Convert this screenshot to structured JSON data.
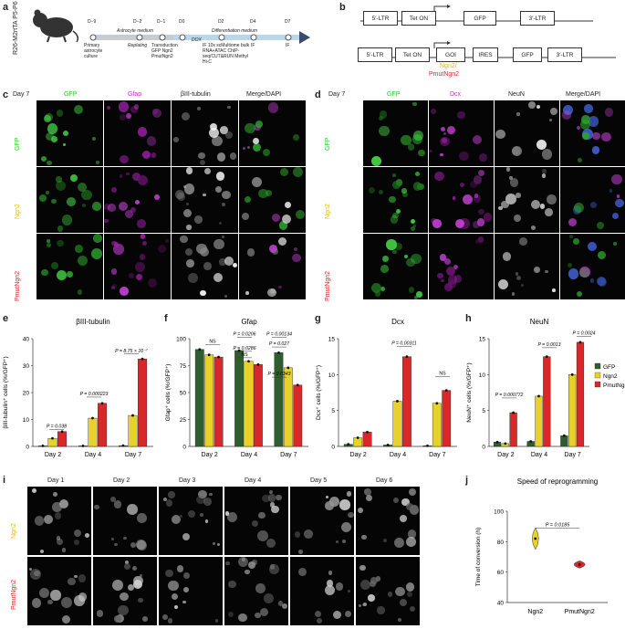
{
  "panel_labels": {
    "a": "a",
    "b": "b",
    "c": "c",
    "d": "d",
    "e": "e",
    "f": "f",
    "g": "g",
    "h": "h",
    "i": "i",
    "j": "j"
  },
  "panel_a": {
    "mouse_label": "R26-M2rtTA P5-P6",
    "days": [
      "D−9",
      "D−2",
      "D−1",
      "D0",
      "D2",
      "D4",
      "D7"
    ],
    "medium_astro": "Astrocyte medium",
    "medium_diff": "Differentiation medium",
    "dox": "DOX",
    "steps": {
      "d9": "Primary astrocyte culture",
      "d2": "Replating",
      "d1": "Transduction GFP Ngn2 PmutNgn2",
      "d2b": "IF 10x scMultiome bulk RNA+ATAC ChIP-seq/CUT&RUN Methyl Hi-C",
      "d4": "IF",
      "d7": "IF"
    }
  },
  "panel_b": {
    "row1": [
      "5′-LTR",
      "Tet ON",
      "GFP",
      "3′-LTR"
    ],
    "row2": [
      "5′-LTR",
      "Tet ON",
      "GOI",
      "IRES",
      "GFP",
      "3′-LTR"
    ],
    "goi_ngn2": "Ngn2/",
    "goi_pmut": "PmutNgn2"
  },
  "panel_c": {
    "day": "Day 7",
    "cols": [
      "GFP",
      "Gfap",
      "βIII-tubulin",
      "Merge/DAPI"
    ],
    "rows": [
      "GFP",
      "Ngn2",
      "PmutNgn2"
    ]
  },
  "panel_d": {
    "day": "Day 7",
    "cols": [
      "GFP",
      "Dcx",
      "NeuN",
      "Merge/DAPI"
    ],
    "rows": [
      "GFP",
      "Ngn2",
      "PmutNgn2"
    ]
  },
  "colors": {
    "GFP": "#2e5e2e",
    "Ngn2": "#e8d22a",
    "PmutNgn2": "#d8282a",
    "green": "#36c236",
    "magenta": "#c02cc6",
    "ngn2_text": "#e6b800",
    "pmut_text": "#d8282a"
  },
  "legend": [
    "GFP",
    "Ngn2",
    "PmutNgn2"
  ],
  "chart_data": [
    {
      "panel": "e",
      "type": "bar",
      "title": "βIII-tubulin",
      "ylabel": "βIII-tubulin⁺ cells (%/GFP⁺)",
      "ylim": [
        0,
        40
      ],
      "yticks": [
        0,
        10,
        20,
        30,
        40
      ],
      "categories": [
        "Day 2",
        "Day 4",
        "Day 7"
      ],
      "series": [
        {
          "name": "GFP",
          "values": [
            0.2,
            0.2,
            0.3
          ]
        },
        {
          "name": "Ngn2",
          "values": [
            3,
            10.5,
            11.5
          ]
        },
        {
          "name": "PmutNgn2",
          "values": [
            5.5,
            16,
            32.5
          ]
        }
      ],
      "annotations": [
        "P = 0.038",
        "P = 0.000223",
        "P = 8.75 × 10⁻⁷"
      ]
    },
    {
      "panel": "f",
      "type": "bar",
      "title": "Gfap",
      "ylabel": "Gfap⁺ cells (%/GFP⁺)",
      "ylim": [
        0,
        100
      ],
      "yticks": [
        0,
        25,
        50,
        75,
        100
      ],
      "categories": [
        "Day 2",
        "Day 4",
        "Day 7"
      ],
      "series": [
        {
          "name": "GFP",
          "values": [
            90,
            89,
            87
          ]
        },
        {
          "name": "Ngn2",
          "values": [
            85,
            79,
            73
          ]
        },
        {
          "name": "PmutNgn2",
          "values": [
            83,
            76,
            57
          ]
        }
      ],
      "annotations": [
        "NS",
        "P = 0.0206",
        "P = 0.0286",
        "NS",
        "P = 0.00134",
        "P = 0.027",
        "P = 0.0343"
      ]
    },
    {
      "panel": "g",
      "type": "bar",
      "title": "Dcx",
      "ylabel": "Dcx⁺ cells (%/GFP⁺)",
      "ylim": [
        0,
        15
      ],
      "yticks": [
        0,
        5,
        10,
        15
      ],
      "categories": [
        "Day 2",
        "Day 4",
        "Day 7"
      ],
      "series": [
        {
          "name": "GFP",
          "values": [
            0.3,
            0.2,
            0.1
          ]
        },
        {
          "name": "Ngn2",
          "values": [
            1.2,
            6.3,
            6
          ]
        },
        {
          "name": "PmutNgn2",
          "values": [
            2,
            12.5,
            7.8
          ]
        }
      ],
      "annotations": [
        "P = 0.00311",
        "NS"
      ]
    },
    {
      "panel": "h",
      "type": "bar",
      "title": "NeuN",
      "ylabel": "NeuN⁺ cells (%/GFP⁺)",
      "ylim": [
        0,
        15
      ],
      "yticks": [
        0,
        5,
        10,
        15
      ],
      "categories": [
        "Day 2",
        "Day 4",
        "Day 7"
      ],
      "series": [
        {
          "name": "GFP",
          "values": [
            0.6,
            0.7,
            1.5
          ]
        },
        {
          "name": "Ngn2",
          "values": [
            0.4,
            7,
            10
          ]
        },
        {
          "name": "PmutNgn2",
          "values": [
            4.7,
            12.5,
            14.5
          ]
        }
      ],
      "annotations": [
        "P = 0.000772",
        "P = 0.0013",
        "P = 0.0024"
      ]
    },
    {
      "panel": "j",
      "type": "violin",
      "title": "Speed of reprogramming",
      "ylabel": "Time of conversion (h)",
      "ylim": [
        40,
        100
      ],
      "yticks": [
        40,
        60,
        80,
        100
      ],
      "categories": [
        "Ngn2",
        "PmutNgn2"
      ],
      "values": [
        82,
        65
      ],
      "annotations": [
        "P = 0.0185"
      ]
    }
  ],
  "panel_i": {
    "days": [
      "Day 1",
      "Day 2",
      "Day 3",
      "Day 4",
      "Day 5",
      "Day 6"
    ],
    "rows": [
      "Ngn2",
      "PmutNgn2"
    ]
  }
}
